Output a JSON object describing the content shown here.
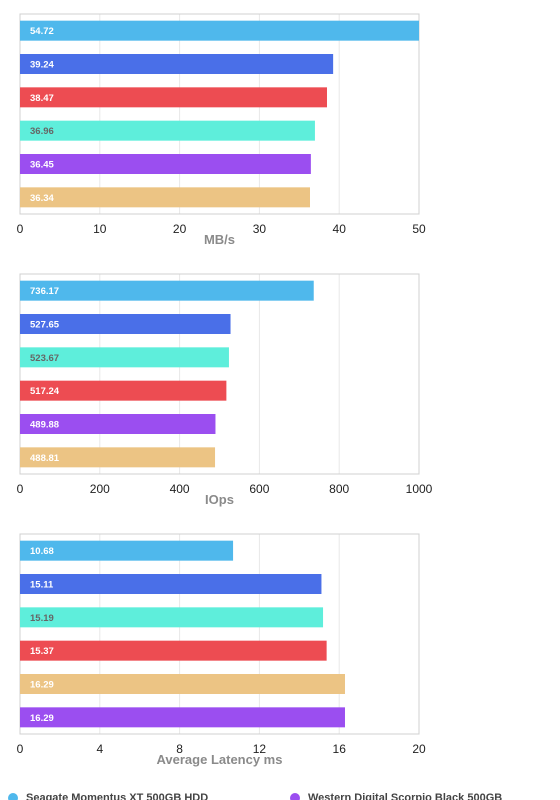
{
  "chart_data": [
    {
      "type": "bar",
      "orientation": "horizontal",
      "xlabel": "MB/s",
      "xlim": [
        0,
        50
      ],
      "xticks": [
        0,
        10,
        20,
        30,
        40,
        50
      ],
      "grid": true,
      "bars": [
        {
          "value": 54.72,
          "label": "54.72",
          "color": "#4fb8ec"
        },
        {
          "value": 39.24,
          "label": "39.24",
          "color": "#4a6fe8"
        },
        {
          "value": 38.47,
          "label": "38.47",
          "color": "#ed4c52"
        },
        {
          "value": 36.96,
          "label": "36.96",
          "color": "#5eeedb"
        },
        {
          "value": 36.45,
          "label": "36.45",
          "color": "#9b4ef0"
        },
        {
          "value": 36.34,
          "label": "36.34",
          "color": "#ecc484"
        }
      ]
    },
    {
      "type": "bar",
      "orientation": "horizontal",
      "xlabel": "IOps",
      "xlim": [
        0,
        1000
      ],
      "xticks": [
        0,
        200,
        400,
        600,
        800,
        1000
      ],
      "grid": true,
      "bars": [
        {
          "value": 736.17,
          "label": "736.17",
          "color": "#4fb8ec"
        },
        {
          "value": 527.65,
          "label": "527.65",
          "color": "#4a6fe8"
        },
        {
          "value": 523.67,
          "label": "523.67",
          "color": "#5eeedb"
        },
        {
          "value": 517.24,
          "label": "517.24",
          "color": "#ed4c52"
        },
        {
          "value": 489.88,
          "label": "489.88",
          "color": "#9b4ef0"
        },
        {
          "value": 488.81,
          "label": "488.81",
          "color": "#ecc484"
        }
      ]
    },
    {
      "type": "bar",
      "orientation": "horizontal",
      "xlabel": "Average Latency ms",
      "xlim": [
        0,
        20
      ],
      "xticks": [
        0,
        4,
        8,
        12,
        16,
        20
      ],
      "grid": true,
      "bars": [
        {
          "value": 10.68,
          "label": "10.68",
          "color": "#4fb8ec"
        },
        {
          "value": 15.11,
          "label": "15.11",
          "color": "#4a6fe8"
        },
        {
          "value": 15.19,
          "label": "15.19",
          "color": "#5eeedb"
        },
        {
          "value": 15.37,
          "label": "15.37",
          "color": "#ed4c52"
        },
        {
          "value": 16.29,
          "label": "16.29",
          "color": "#ecc484"
        },
        {
          "value": 16.29,
          "label": "16.29",
          "color": "#9b4ef0"
        }
      ]
    }
  ],
  "legend": {
    "placement": "bottom",
    "items": [
      {
        "name": "Seagate Momentus XT 500GB HDD",
        "color": "#4fb8ec"
      },
      {
        "name": "Western Digital Scorpio Black 500GB",
        "color": "#9b4ef0"
      }
    ]
  },
  "colors": {
    "light_text_fill": "#5eeedb",
    "light_text_color": "#666666",
    "dark_text_color": "#ffffff",
    "grid": "#e8e8e8",
    "frame": "#d0d0d0"
  }
}
